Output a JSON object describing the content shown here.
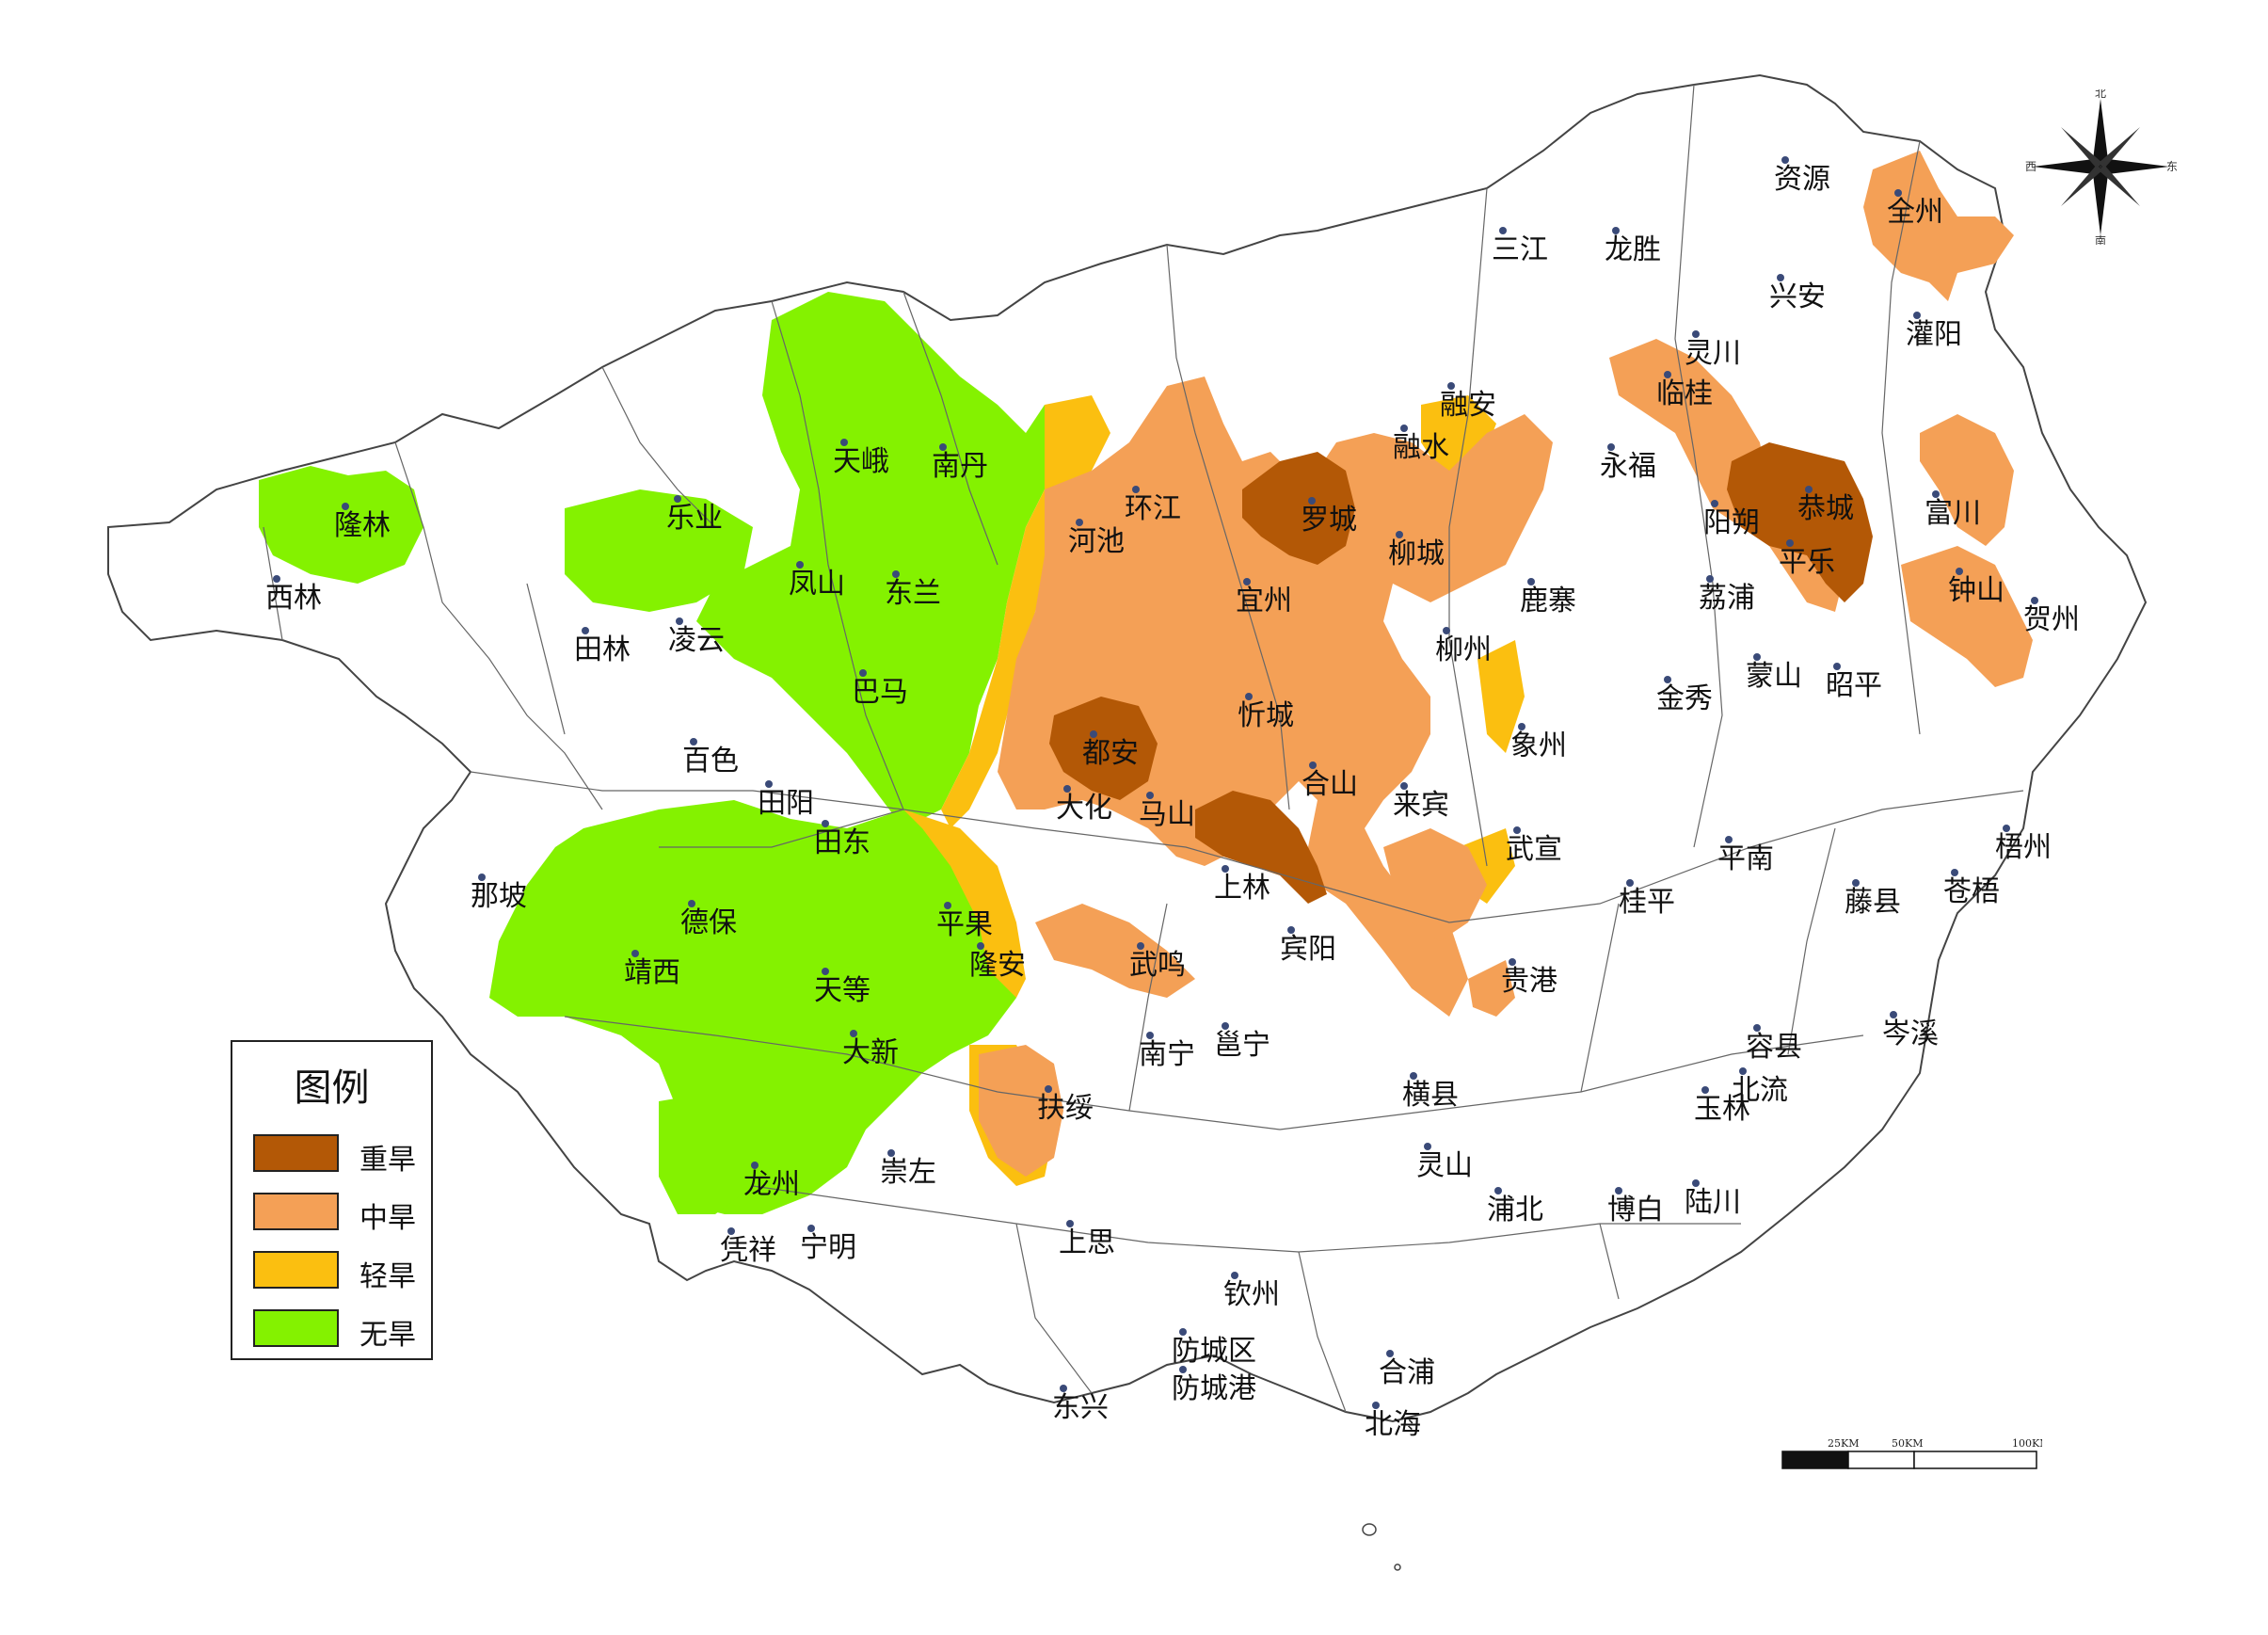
{
  "legend": {
    "title": "图例",
    "items": [
      {
        "label": "重旱",
        "color": "#b35806"
      },
      {
        "label": "中旱",
        "color": "#f4a056"
      },
      {
        "label": "轻旱",
        "color": "#fbbf10"
      },
      {
        "label": "无旱",
        "color": "#84f200"
      }
    ]
  },
  "compass": {
    "north": "北",
    "south": "南",
    "east": "东",
    "west": "西"
  },
  "scalebar": {
    "labels": [
      "25KM",
      "50KM",
      "100KM"
    ]
  },
  "counties": [
    {
      "name": "资源",
      "class": "none"
    },
    {
      "name": "全州",
      "class": "moderate"
    },
    {
      "name": "三江",
      "class": "none"
    },
    {
      "name": "龙胜",
      "class": "none"
    },
    {
      "name": "兴安",
      "class": "none"
    },
    {
      "name": "灌阳",
      "class": "moderate"
    },
    {
      "name": "灵川",
      "class": "moderate"
    },
    {
      "name": "临桂",
      "class": "moderate"
    },
    {
      "name": "融安",
      "class": "light"
    },
    {
      "name": "融水",
      "class": "light"
    },
    {
      "name": "永福",
      "class": "moderate"
    },
    {
      "name": "阳朔",
      "class": "severe"
    },
    {
      "name": "恭城",
      "class": "severe"
    },
    {
      "name": "富川",
      "class": "moderate"
    },
    {
      "name": "平乐",
      "class": "severe"
    },
    {
      "name": "钟山",
      "class": "moderate"
    },
    {
      "name": "贺州",
      "class": "moderate"
    },
    {
      "name": "荔浦",
      "class": "moderate"
    },
    {
      "name": "天峨",
      "class": "no"
    },
    {
      "name": "南丹",
      "class": "no"
    },
    {
      "name": "环江",
      "class": "moderate"
    },
    {
      "name": "罗城",
      "class": "severe"
    },
    {
      "name": "柳城",
      "class": "moderate"
    },
    {
      "name": "鹿寨",
      "class": "none"
    },
    {
      "name": "河池",
      "class": "moderate"
    },
    {
      "name": "宜州",
      "class": "moderate"
    },
    {
      "name": "柳州",
      "class": "light"
    },
    {
      "name": "隆林",
      "class": "no"
    },
    {
      "name": "乐业",
      "class": "no"
    },
    {
      "name": "西林",
      "class": "no"
    },
    {
      "name": "凤山",
      "class": "no"
    },
    {
      "name": "东兰",
      "class": "no"
    },
    {
      "name": "田林",
      "class": "none"
    },
    {
      "name": "凌云",
      "class": "no"
    },
    {
      "name": "巴马",
      "class": "no"
    },
    {
      "name": "金秀",
      "class": "none"
    },
    {
      "name": "蒙山",
      "class": "none"
    },
    {
      "name": "昭平",
      "class": "none"
    },
    {
      "name": "忻城",
      "class": "moderate"
    },
    {
      "name": "都安",
      "class": "severe"
    },
    {
      "name": "象州",
      "class": "light"
    },
    {
      "name": "百色",
      "class": "none"
    },
    {
      "name": "田阳",
      "class": "light"
    },
    {
      "name": "合山",
      "class": "severe"
    },
    {
      "name": "大化",
      "class": "moderate"
    },
    {
      "name": "马山",
      "class": "moderate"
    },
    {
      "name": "来宾",
      "class": "moderate"
    },
    {
      "name": "田东",
      "class": "no"
    },
    {
      "name": "武宣",
      "class": "light"
    },
    {
      "name": "梧州",
      "class": "none"
    },
    {
      "name": "平南",
      "class": "none"
    },
    {
      "name": "那坡",
      "class": "none"
    },
    {
      "name": "上林",
      "class": "severe"
    },
    {
      "name": "桂平",
      "class": "none"
    },
    {
      "name": "藤县",
      "class": "none"
    },
    {
      "name": "苍梧",
      "class": "none"
    },
    {
      "name": "德保",
      "class": "no"
    },
    {
      "name": "平果",
      "class": "light"
    },
    {
      "name": "宾阳",
      "class": "none"
    },
    {
      "name": "隆安",
      "class": "light"
    },
    {
      "name": "武鸣",
      "class": "moderate"
    },
    {
      "name": "靖西",
      "class": "no"
    },
    {
      "name": "贵港",
      "class": "moderate"
    },
    {
      "name": "天等",
      "class": "no"
    },
    {
      "name": "岑溪",
      "class": "none"
    },
    {
      "name": "容县",
      "class": "none"
    },
    {
      "name": "南宁",
      "class": "none"
    },
    {
      "name": "邕宁",
      "class": "none"
    },
    {
      "name": "大新",
      "class": "no"
    },
    {
      "name": "北流",
      "class": "none"
    },
    {
      "name": "横县",
      "class": "none"
    },
    {
      "name": "扶绥",
      "class": "moderate"
    },
    {
      "name": "玉林",
      "class": "none"
    },
    {
      "name": "灵山",
      "class": "none"
    },
    {
      "name": "崇左",
      "class": "no"
    },
    {
      "name": "龙州",
      "class": "no"
    },
    {
      "name": "浦北",
      "class": "none"
    },
    {
      "name": "博白",
      "class": "none"
    },
    {
      "name": "陆川",
      "class": "none"
    },
    {
      "name": "上思",
      "class": "none"
    },
    {
      "name": "凭祥",
      "class": "no"
    },
    {
      "name": "宁明",
      "class": "none"
    },
    {
      "name": "钦州",
      "class": "none"
    },
    {
      "name": "防城区",
      "class": "none"
    },
    {
      "name": "防城港",
      "class": "none"
    },
    {
      "name": "合浦",
      "class": "none"
    },
    {
      "name": "东兴",
      "class": "none"
    },
    {
      "name": "北海",
      "class": "none"
    }
  ]
}
